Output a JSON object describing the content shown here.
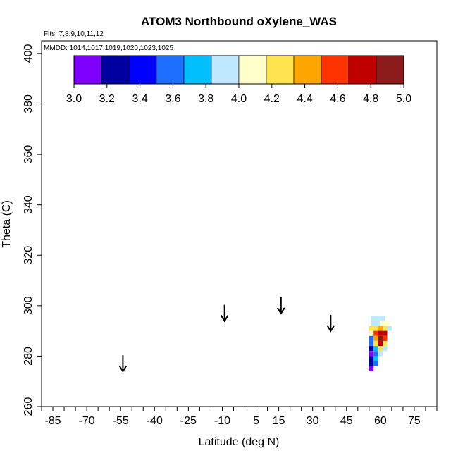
{
  "chart_data": {
    "type": "heatmap",
    "title": "ATOM3 Northbound oXylene_WAS",
    "flights_label": "Flts: 7,8,9,10,11,12",
    "mmdd_label": "MMDD: 1014,1017,1019,1020,1023,1025",
    "xlabel": "Latitude (deg N)",
    "ylabel": "Theta (C)",
    "xlim": [
      -90,
      85
    ],
    "ylim": [
      260,
      405
    ],
    "x_tick_values": [
      -85,
      -70,
      -55,
      -40,
      -25,
      -10,
      5,
      15,
      30,
      45,
      60,
      75
    ],
    "x_tick_labels": [
      "-85",
      "-70",
      "-55",
      "-40",
      "-25",
      "-10",
      "5",
      "15",
      "30",
      "45",
      "60",
      "75"
    ],
    "x_minor_ticks": [
      -90,
      -80,
      -75,
      -65,
      -60,
      -50,
      -45,
      -35,
      -30,
      -20,
      -15,
      -5,
      0,
      10,
      20,
      25,
      35,
      40,
      50,
      55,
      65,
      70,
      80,
      85
    ],
    "y_ticks": [
      260,
      280,
      300,
      320,
      340,
      360,
      380,
      400
    ],
    "colorbar": {
      "range": [
        3.0,
        5.0
      ],
      "tick_labels": [
        "3.0",
        "3.2",
        "3.4",
        "3.6",
        "3.8",
        "4.0",
        "4.2",
        "4.4",
        "4.6",
        "4.8",
        "5.0"
      ],
      "colors": [
        "#7f00ff",
        "#0000a0",
        "#0000ff",
        "#1f6fff",
        "#00bfff",
        "#bfe8ff",
        "#ffffcc",
        "#ffe34f",
        "#ffa500",
        "#ff3300",
        "#c00000",
        "#8b1a1a"
      ]
    },
    "arrows": [
      {
        "lat": -54,
        "theta": 277
      },
      {
        "lat": -9,
        "theta": 297
      },
      {
        "lat": 16,
        "theta": 300
      },
      {
        "lat": 38,
        "theta": 293
      }
    ],
    "cells": [
      {
        "lat": 57,
        "theta": 295,
        "value": 3.9
      },
      {
        "lat": 59,
        "theta": 295,
        "value": 3.9
      },
      {
        "lat": 61,
        "theta": 295,
        "value": 3.9
      },
      {
        "lat": 57,
        "theta": 293,
        "value": 3.9
      },
      {
        "lat": 59,
        "theta": 293,
        "value": 3.9
      },
      {
        "lat": 61,
        "theta": 293,
        "value": 4.0
      },
      {
        "lat": 63,
        "theta": 293,
        "value": 4.1
      },
      {
        "lat": 56,
        "theta": 291,
        "value": 4.2
      },
      {
        "lat": 58,
        "theta": 291,
        "value": 4.3
      },
      {
        "lat": 60,
        "theta": 291,
        "value": 4.4
      },
      {
        "lat": 62,
        "theta": 291,
        "value": 4.3
      },
      {
        "lat": 64,
        "theta": 291,
        "value": 3.9
      },
      {
        "lat": 56,
        "theta": 289,
        "value": 4.0
      },
      {
        "lat": 58,
        "theta": 289,
        "value": 4.5
      },
      {
        "lat": 60,
        "theta": 289,
        "value": 4.8
      },
      {
        "lat": 62,
        "theta": 289,
        "value": 4.7
      },
      {
        "lat": 56,
        "theta": 287,
        "value": 3.6
      },
      {
        "lat": 58,
        "theta": 287,
        "value": 4.4
      },
      {
        "lat": 60,
        "theta": 287,
        "value": 4.9
      },
      {
        "lat": 62,
        "theta": 287,
        "value": 4.6
      },
      {
        "lat": 56,
        "theta": 285,
        "value": 3.5
      },
      {
        "lat": 58,
        "theta": 285,
        "value": 4.3
      },
      {
        "lat": 60,
        "theta": 285,
        "value": 4.7
      },
      {
        "lat": 62,
        "theta": 285,
        "value": 4.3
      },
      {
        "lat": 56,
        "theta": 283,
        "value": 3.3
      },
      {
        "lat": 58,
        "theta": 283,
        "value": 3.8
      },
      {
        "lat": 60,
        "theta": 283,
        "value": 4.2
      },
      {
        "lat": 62,
        "theta": 283,
        "value": 3.9
      },
      {
        "lat": 56,
        "theta": 281,
        "value": 3.1
      },
      {
        "lat": 58,
        "theta": 281,
        "value": 3.6
      },
      {
        "lat": 60,
        "theta": 281,
        "value": 3.9
      },
      {
        "lat": 56,
        "theta": 279,
        "value": 3.2
      },
      {
        "lat": 58,
        "theta": 279,
        "value": 3.7
      },
      {
        "lat": 56,
        "theta": 277,
        "value": 3.2
      },
      {
        "lat": 58,
        "theta": 277,
        "value": 3.5
      },
      {
        "lat": 56,
        "theta": 275,
        "value": 3.1
      }
    ],
    "grid": false,
    "legend_position": "top-left"
  }
}
